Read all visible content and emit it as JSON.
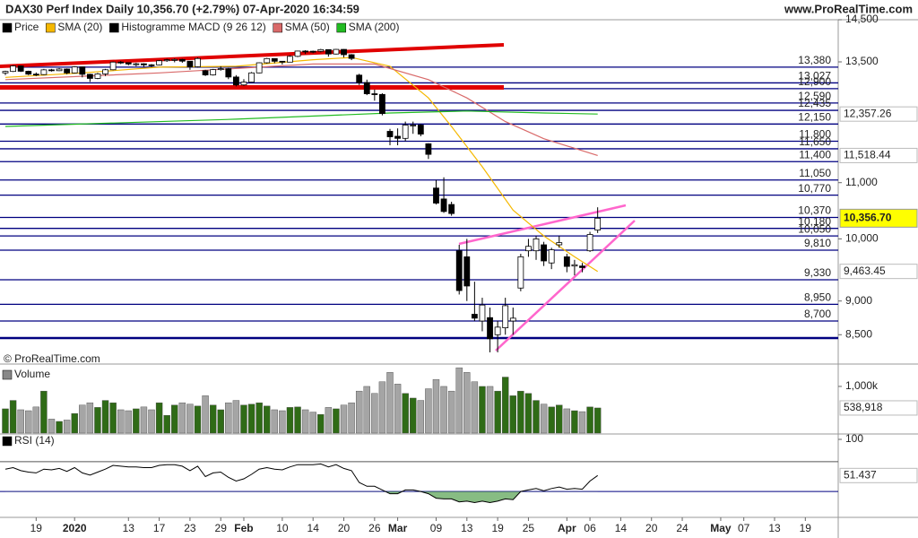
{
  "header": {
    "title": "DAX30 Perf Index Daily 10,356.70 (+2.79%) 07-Apr-2020 16:34:59",
    "site": "www.ProRealTime.com"
  },
  "chart_data": [
    {
      "type": "candlestick",
      "name": "Price",
      "legend_color": "#000000",
      "copyright": "© ProRealTime.com",
      "log_scale": true,
      "ylim": [
        8100,
        14500
      ],
      "yticks": [
        {
          "value": 14500,
          "label": "14,500"
        },
        {
          "value": 13500,
          "label": "13,500"
        },
        {
          "value": 11000,
          "label": "11,000"
        },
        {
          "value": 10000,
          "label": "10,000"
        },
        {
          "value": 9000,
          "label": "9,000"
        },
        {
          "value": 8500,
          "label": "8,500"
        }
      ],
      "up_color": "#ffffff",
      "down_color": "#000000",
      "open": [
        13250,
        13283,
        13407,
        13287,
        13222,
        13212,
        13319,
        13300,
        13337,
        13249,
        13386,
        13219,
        13127,
        13227,
        13321,
        13495,
        13483,
        13452,
        13456,
        13432,
        13430,
        13526,
        13549,
        13555,
        13516,
        13388,
        13300,
        13205,
        13324,
        13345,
        13158,
        12982,
        13045,
        13250,
        13479,
        13575,
        13514,
        13494,
        13627,
        13750,
        13746,
        13745,
        13784,
        13681,
        13789,
        13665,
        13200,
        13035,
        12790,
        12775,
        12000,
        11900,
        11858,
        12128,
        12128,
        11750,
        10900,
        10700,
        10600,
        9800,
        9700,
        8800,
        8700,
        8750,
        8500,
        8600,
        8700,
        9200,
        9800,
        9800,
        9900,
        9600,
        9900,
        9700,
        9550,
        9550,
        9800,
        10150
      ],
      "high": [
        13300,
        13425,
        13420,
        13300,
        13260,
        13340,
        13340,
        13360,
        13350,
        13400,
        13390,
        13230,
        13250,
        13340,
        13510,
        13520,
        13490,
        13480,
        13470,
        13450,
        13540,
        13570,
        13580,
        13570,
        13520,
        13600,
        13320,
        13340,
        13400,
        13360,
        13200,
        13110,
        13270,
        13490,
        13590,
        13580,
        13520,
        13650,
        13760,
        13770,
        13760,
        13800,
        13790,
        13800,
        13795,
        13680,
        13230,
        13100,
        12880,
        12800,
        12050,
        12060,
        12200,
        12200,
        12150,
        11760,
        11050,
        11100,
        10650,
        9900,
        10000,
        9300,
        9050,
        8900,
        8700,
        9050,
        8900,
        9750,
        10000,
        10050,
        9950,
        9850,
        10050,
        9750,
        9650,
        9600,
        10120,
        10550
      ],
      "low": [
        13200,
        13270,
        13270,
        13200,
        13180,
        13200,
        13280,
        13290,
        13220,
        13240,
        13150,
        13050,
        13110,
        13180,
        13310,
        13450,
        13420,
        13400,
        13390,
        13380,
        13420,
        13500,
        13490,
        13480,
        13320,
        13370,
        13180,
        13190,
        13300,
        13110,
        12950,
        12960,
        13040,
        13240,
        13460,
        13470,
        13440,
        13490,
        13610,
        13680,
        13700,
        13720,
        13620,
        13670,
        13600,
        13540,
        12980,
        12760,
        12640,
        12330,
        11720,
        11720,
        11800,
        11950,
        11900,
        11450,
        10600,
        10450,
        10400,
        9100,
        9000,
        8700,
        8550,
        8250,
        8250,
        8500,
        8500,
        9150,
        9700,
        9650,
        9550,
        9500,
        9850,
        9450,
        9400,
        9450,
        9780,
        10100
      ],
      "close": [
        13283,
        13407,
        13287,
        13222,
        13212,
        13319,
        13300,
        13337,
        13249,
        13386,
        13219,
        13127,
        13227,
        13321,
        13495,
        13483,
        13452,
        13456,
        13432,
        13430,
        13526,
        13549,
        13555,
        13516,
        13388,
        13577,
        13205,
        13324,
        13345,
        13158,
        12982,
        13045,
        13250,
        13479,
        13575,
        13514,
        13494,
        13627,
        13750,
        13746,
        13745,
        13784,
        13681,
        13789,
        13665,
        13579,
        13035,
        12790,
        12775,
        12367,
        11890,
        11858,
        12128,
        12128,
        11944,
        11541,
        10625,
        10475,
        10439,
        9161,
        9232,
        8742,
        8939,
        8442,
        8610,
        8929,
        8742,
        9701,
        9874,
        10000,
        9633,
        9816,
        9936,
        9544,
        9571,
        9525,
        10075,
        10356.7
      ],
      "last_label": "10,356.70",
      "tag_color": "#ffff00",
      "series": [
        {
          "name": "SMA (20)",
          "color": "#f5b800",
          "x": [
            0,
            10,
            20,
            30,
            40,
            45,
            50,
            55,
            58,
            62,
            66,
            70,
            74,
            77
          ],
          "values": [
            13150,
            13250,
            13380,
            13400,
            13550,
            13600,
            13400,
            12700,
            12100,
            11300,
            10500,
            10050,
            9700,
            9463.45
          ],
          "last_label": "9,463.45"
        },
        {
          "name": "SMA (50)",
          "color": "#d96a6a",
          "x": [
            0,
            20,
            40,
            48,
            55,
            60,
            65,
            70,
            77
          ],
          "values": [
            13100,
            13250,
            13450,
            13450,
            13100,
            12700,
            12200,
            11850,
            11518.44
          ],
          "last_label": "11,518.44"
        },
        {
          "name": "SMA (200)",
          "color": "#22bb22",
          "x": [
            0,
            30,
            50,
            60,
            70,
            77
          ],
          "values": [
            12100,
            12250,
            12380,
            12420,
            12380,
            12357.26
          ],
          "last_label": "12,357.26"
        }
      ],
      "extra_legend": {
        "name": "Histogramme MACD (9 26 12)",
        "color": "#000000"
      },
      "levels": [
        {
          "value": 13380,
          "label": "13,380"
        },
        {
          "value": 13027,
          "label": "13,027"
        },
        {
          "value": 12900,
          "label": "12,900"
        },
        {
          "value": 12590,
          "label": "12,590"
        },
        {
          "value": 12435,
          "label": "12,435"
        },
        {
          "value": 12150,
          "label": "12,150"
        },
        {
          "value": 11800,
          "label": "11,800"
        },
        {
          "value": 11650,
          "label": "11,650"
        },
        {
          "value": 11400,
          "label": "11,400"
        },
        {
          "value": 11050,
          "label": "11,050"
        },
        {
          "value": 10770,
          "label": "10,770"
        },
        {
          "value": 10370,
          "label": "10,370"
        },
        {
          "value": 10180,
          "label": "10,180"
        },
        {
          "value": 10050,
          "label": "10,050"
        },
        {
          "value": 9810,
          "label": "9,810"
        },
        {
          "value": 9330,
          "label": "9,330"
        },
        {
          "value": 8950,
          "label": "8,950"
        },
        {
          "value": 8700,
          "label": "8,700"
        }
      ],
      "level_color": "#000080"
    },
    {
      "type": "bar",
      "name": "Volume",
      "legend_color": "#888888",
      "ylim": [
        0,
        1460000
      ],
      "yticks": [
        {
          "value": 1000000,
          "label": "1,000k"
        }
      ],
      "up_color": "#2f6b16",
      "down_color": "#a5a5a5",
      "values": [
        520000,
        700000,
        500000,
        480000,
        560000,
        900000,
        300000,
        250000,
        280000,
        420000,
        600000,
        650000,
        550000,
        700000,
        650000,
        500000,
        480000,
        520000,
        560000,
        500000,
        650000,
        380000,
        600000,
        650000,
        620000,
        580000,
        800000,
        600000,
        500000,
        650000,
        700000,
        600000,
        620000,
        650000,
        580000,
        500000,
        480000,
        550000,
        560000,
        500000,
        450000,
        400000,
        550000,
        520000,
        600000,
        650000,
        900000,
        1000000,
        850000,
        1100000,
        1300000,
        1050000,
        850000,
        750000,
        700000,
        950000,
        1150000,
        1000000,
        900000,
        1400000,
        1300000,
        1100000,
        1000000,
        1000000,
        900000,
        1200000,
        800000,
        900000,
        850000,
        700000,
        620000,
        560000,
        600000,
        520000,
        480000,
        460000,
        560000,
        538918
      ],
      "last_label": "538,918"
    },
    {
      "type": "line",
      "name": "RSI (14)",
      "legend_color": "#000000",
      "color": "#000000",
      "ylim": [
        0,
        100
      ],
      "yticks": [
        100
      ],
      "levels": [
        70,
        30
      ],
      "fill_color": "#5fa55a",
      "values": [
        60,
        62,
        58,
        56,
        55,
        60,
        59,
        61,
        57,
        62,
        55,
        52,
        56,
        60,
        65,
        64,
        63,
        63,
        62,
        62,
        65,
        66,
        66,
        64,
        58,
        64,
        50,
        55,
        56,
        49,
        44,
        47,
        53,
        60,
        62,
        60,
        59,
        63,
        66,
        66,
        66,
        67,
        63,
        66,
        61,
        58,
        42,
        37,
        37,
        32,
        27,
        27,
        32,
        32,
        30,
        27,
        21,
        20,
        20,
        16,
        17,
        15,
        17,
        15,
        17,
        20,
        19,
        30,
        32,
        34,
        31,
        34,
        36,
        33,
        34,
        33,
        44,
        51.437
      ],
      "last_label": "51.437",
      "xticks": [
        {
          "value": 4,
          "label": "19"
        },
        {
          "value": 9,
          "label": "2020"
        },
        {
          "value": 16,
          "label": "13"
        },
        {
          "value": 20,
          "label": "17"
        },
        {
          "value": 24,
          "label": "23"
        },
        {
          "value": 28,
          "label": "29"
        },
        {
          "value": 31,
          "label": "Feb"
        },
        {
          "value": 36,
          "label": "10"
        },
        {
          "value": 40,
          "label": "14"
        },
        {
          "value": 44,
          "label": "20"
        },
        {
          "value": 48,
          "label": "26"
        },
        {
          "value": 51,
          "label": "Mar"
        },
        {
          "value": 56,
          "label": "09"
        },
        {
          "value": 60,
          "label": "13"
        },
        {
          "value": 64,
          "label": "19"
        },
        {
          "value": 68,
          "label": "25"
        },
        {
          "value": 73,
          "label": "Apr"
        },
        {
          "value": 76,
          "label": "06"
        },
        {
          "value": 80,
          "label": "14"
        },
        {
          "value": 84,
          "label": "20"
        },
        {
          "value": 88,
          "label": "24"
        },
        {
          "value": 93,
          "label": "May"
        },
        {
          "value": 96,
          "label": "07"
        },
        {
          "value": 100,
          "label": "13"
        },
        {
          "value": 104,
          "label": "19"
        }
      ]
    }
  ]
}
